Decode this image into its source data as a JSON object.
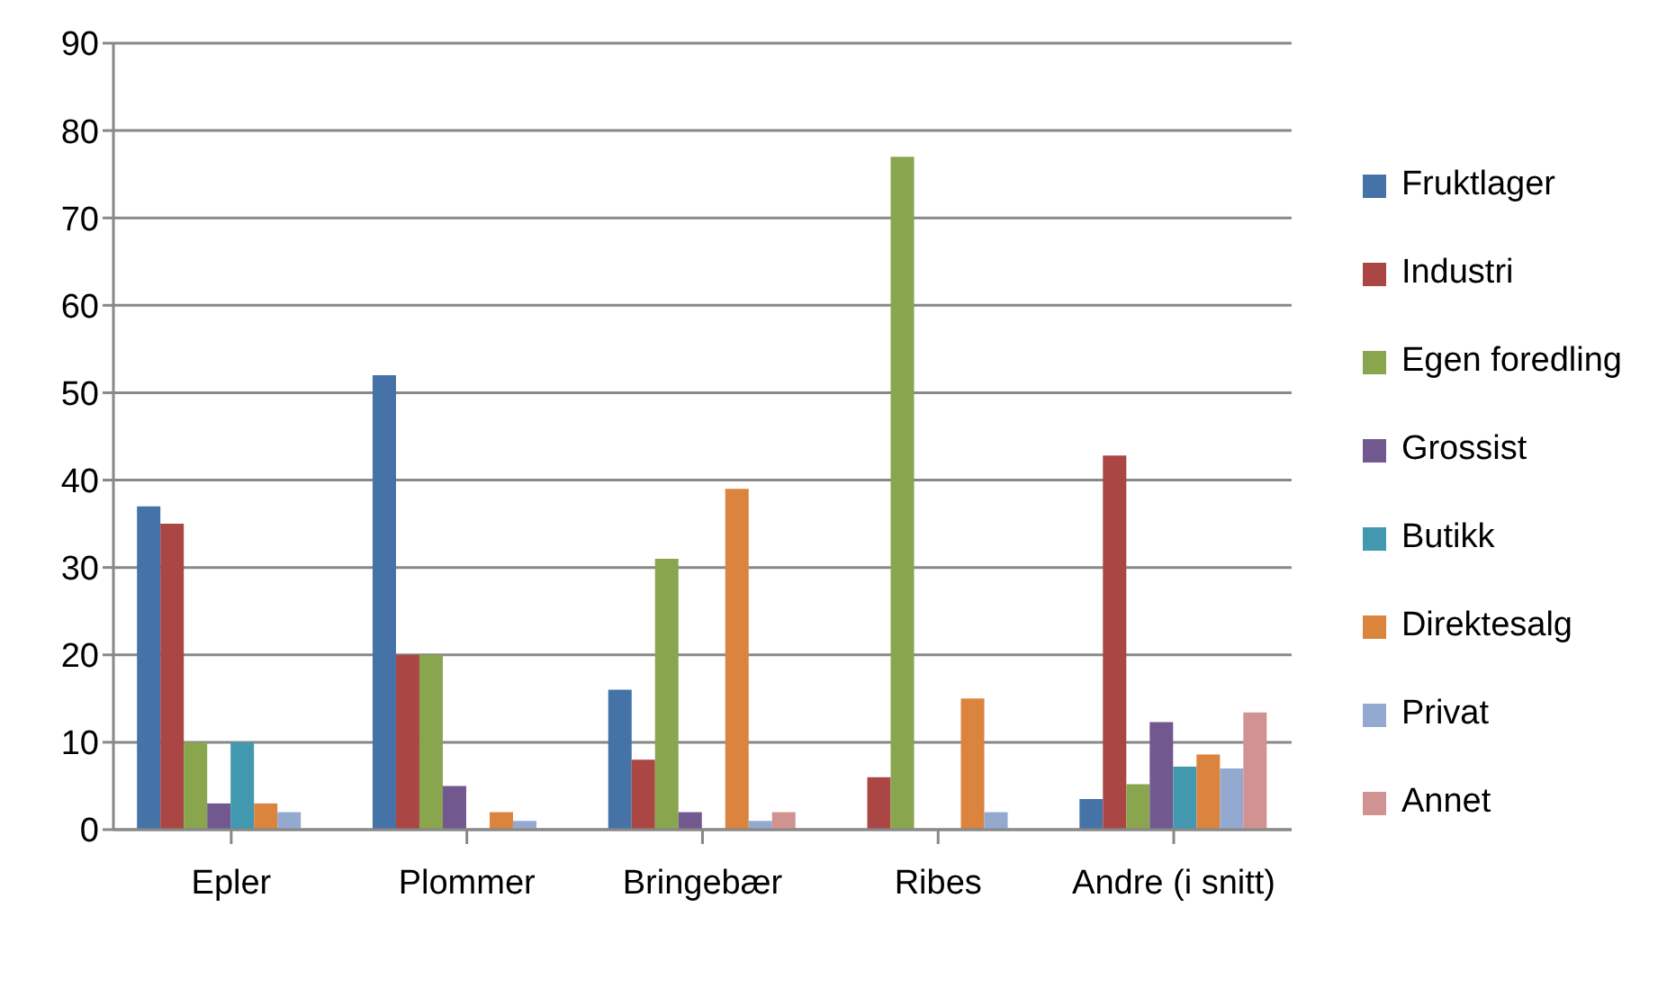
{
  "chart_data": {
    "type": "bar",
    "categories": [
      "Epler",
      "Plommer",
      "Bringebær",
      "Ribes",
      "Andre (i snitt)"
    ],
    "series": [
      {
        "name": "Fruktlager",
        "color": "#4572a7",
        "values": [
          37,
          52,
          16,
          null,
          3.5
        ]
      },
      {
        "name": "Industri",
        "color": "#aa4643",
        "values": [
          35,
          20,
          8,
          6,
          42.8
        ]
      },
      {
        "name": "Egen foredling",
        "color": "#89a54e",
        "values": [
          10,
          20,
          31,
          77,
          5.2
        ]
      },
      {
        "name": "Grossist",
        "color": "#71588f",
        "values": [
          3,
          5,
          2,
          null,
          12.3
        ]
      },
      {
        "name": "Butikk",
        "color": "#4198af",
        "values": [
          10,
          null,
          null,
          null,
          7.2
        ]
      },
      {
        "name": "Direktesalg",
        "color": "#db843d",
        "values": [
          3,
          2,
          39,
          15,
          8.6
        ]
      },
      {
        "name": "Privat",
        "color": "#93a9cf",
        "values": [
          2,
          1,
          1,
          2,
          7
        ]
      },
      {
        "name": "Annet",
        "color": "#d19392",
        "values": [
          null,
          null,
          2,
          null,
          13.4
        ]
      }
    ],
    "ylim": [
      0,
      90
    ],
    "yticks": [
      0,
      10,
      20,
      30,
      40,
      50,
      60,
      70,
      80,
      90
    ],
    "grid": "y",
    "legend": "right"
  }
}
